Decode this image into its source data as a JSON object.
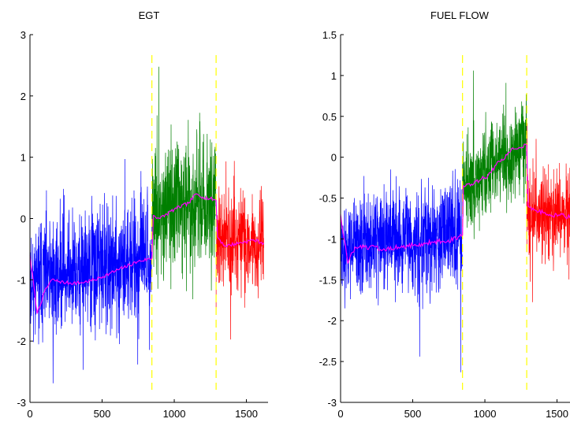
{
  "chart_data": [
    {
      "type": "line",
      "title": "EGT",
      "xlabel": "",
      "ylabel": "",
      "xlim": [
        0,
        1650
      ],
      "ylim": [
        -3,
        3
      ],
      "xticks": [
        0,
        500,
        1000,
        1500
      ],
      "yticks": [
        -3,
        -2,
        -1,
        0,
        1,
        2,
        3
      ],
      "grid": false,
      "vlines": [
        {
          "x": 845,
          "color": "#ffff00",
          "style": "dashed"
        },
        {
          "x": 1290,
          "color": "#ffff00",
          "style": "dashed"
        }
      ],
      "segments": [
        {
          "color": "#0000ff",
          "x_range": [
            0,
            845
          ],
          "mean_start": -1.0,
          "mean_end": -0.65,
          "spread": 0.9,
          "seed": 11
        },
        {
          "color": "#007f00",
          "x_range": [
            845,
            1290
          ],
          "mean_start": 0.15,
          "mean_end": 0.3,
          "spread": 1.0,
          "seed": 23
        },
        {
          "color": "#ff0000",
          "x_range": [
            1290,
            1620
          ],
          "mean_start": -0.35,
          "mean_end": -0.4,
          "spread": 0.75,
          "seed": 37
        }
      ],
      "moving_average": {
        "color": "#ff00ff",
        "x": [
          0,
          50,
          100,
          150,
          250,
          350,
          450,
          550,
          650,
          750,
          845,
          855,
          900,
          1000,
          1100,
          1150,
          1200,
          1290,
          1300,
          1350,
          1450,
          1550,
          1620
        ],
        "y": [
          -0.6,
          -1.55,
          -1.2,
          -1.0,
          -1.05,
          -1.05,
          -1.0,
          -0.9,
          -0.8,
          -0.7,
          -0.65,
          0.05,
          0.0,
          0.15,
          0.25,
          0.4,
          0.35,
          0.3,
          -0.3,
          -0.45,
          -0.4,
          -0.35,
          -0.4
        ]
      }
    },
    {
      "type": "line",
      "title": "FUEL FLOW",
      "xlabel": "",
      "ylabel": "",
      "xlim": [
        0,
        1650
      ],
      "ylim": [
        -3,
        1.5
      ],
      "xticks": [
        0,
        500,
        1000,
        1500
      ],
      "yticks": [
        -3,
        -2.5,
        -2,
        -1.5,
        -1,
        -0.5,
        0,
        0.5,
        1,
        1.5
      ],
      "grid": false,
      "vlines": [
        {
          "x": 845,
          "color": "#ffff00",
          "style": "dashed"
        },
        {
          "x": 1290,
          "color": "#ffff00",
          "style": "dashed"
        }
      ],
      "segments": [
        {
          "color": "#0000ff",
          "x_range": [
            0,
            845
          ],
          "mean_start": -1.1,
          "mean_end": -0.95,
          "spread": 0.6,
          "seed": 5
        },
        {
          "color": "#007f00",
          "x_range": [
            845,
            1290
          ],
          "mean_start": -0.35,
          "mean_end": 0.15,
          "spread": 0.55,
          "seed": 19
        },
        {
          "color": "#ff0000",
          "x_range": [
            1290,
            1620
          ],
          "mean_start": -0.65,
          "mean_end": -0.75,
          "spread": 0.5,
          "seed": 41
        }
      ],
      "moving_average": {
        "color": "#ff00ff",
        "x": [
          0,
          50,
          100,
          200,
          300,
          400,
          500,
          600,
          700,
          800,
          845,
          850,
          900,
          1000,
          1100,
          1200,
          1290,
          1300,
          1350,
          1450,
          1550,
          1650
        ],
        "y": [
          -0.7,
          -1.3,
          -1.1,
          -1.1,
          -1.12,
          -1.1,
          -1.08,
          -1.05,
          -1.03,
          -1.0,
          -0.95,
          -0.35,
          -0.35,
          -0.25,
          -0.05,
          0.1,
          0.15,
          -0.6,
          -0.65,
          -0.7,
          -0.72,
          -0.75
        ]
      }
    }
  ]
}
